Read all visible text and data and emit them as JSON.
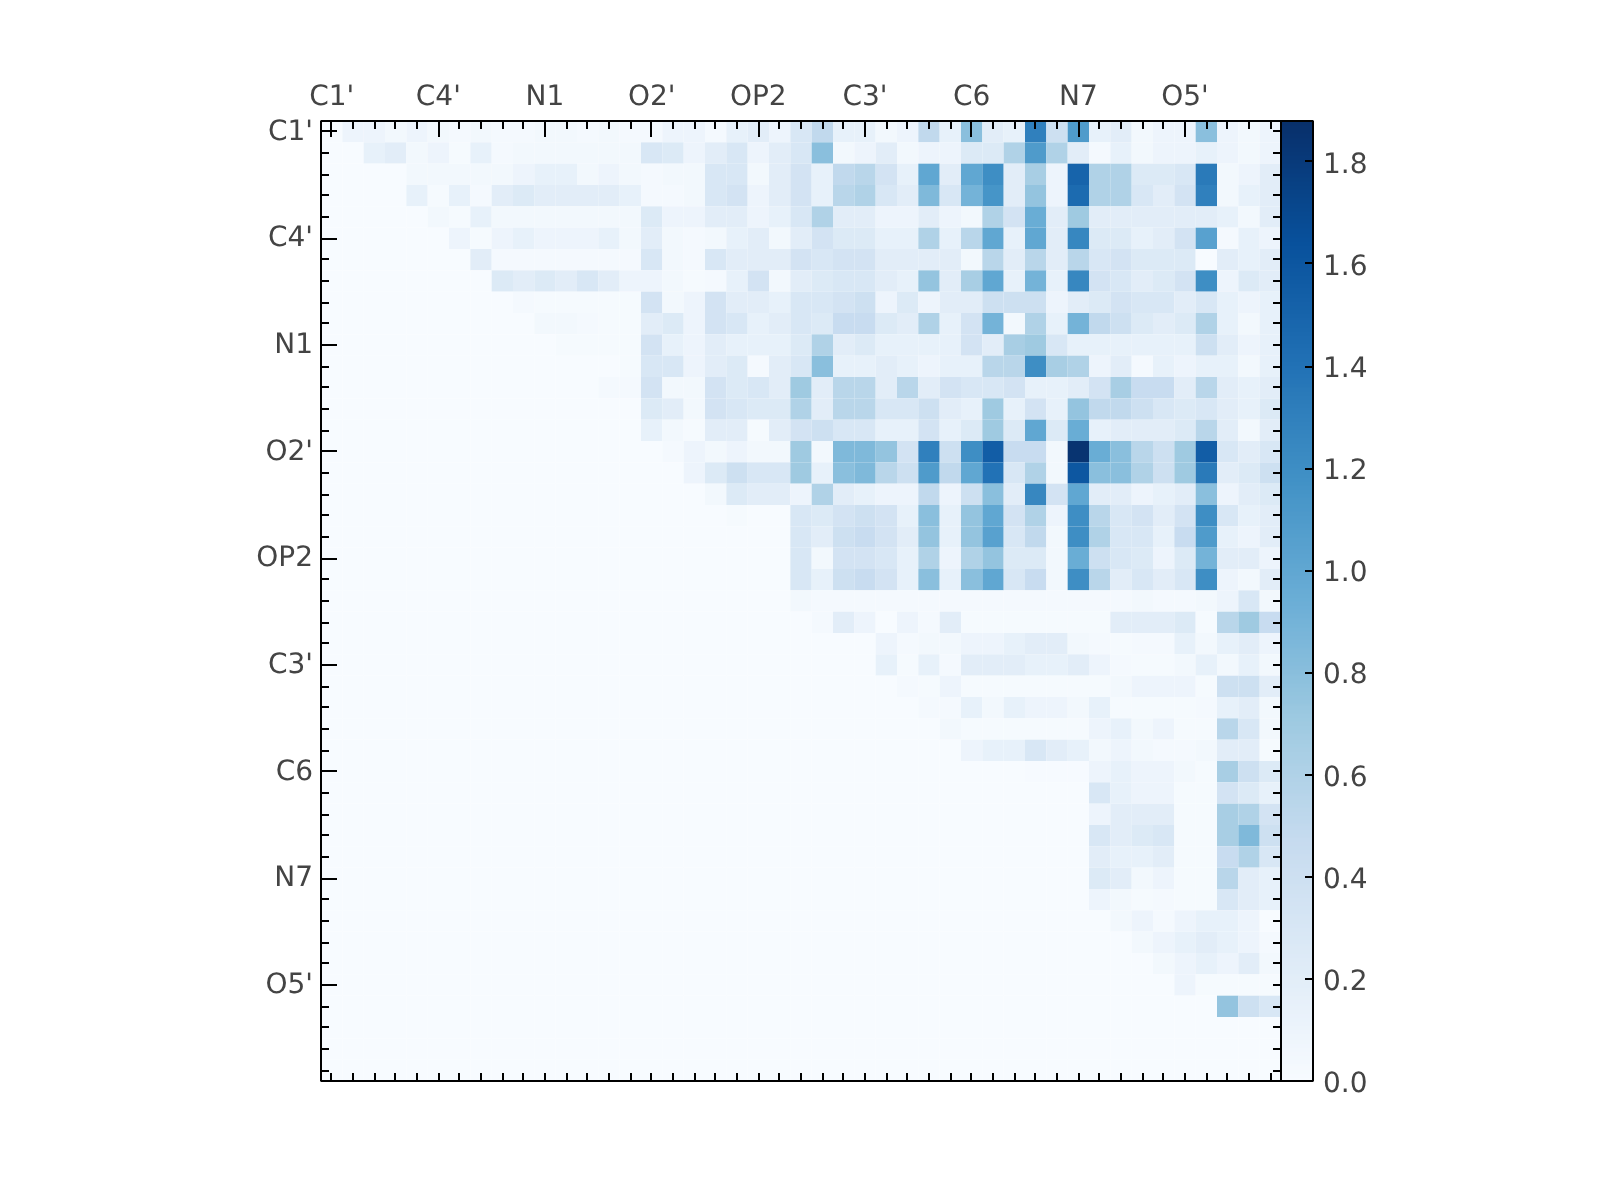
{
  "chart_data": {
    "type": "heatmap",
    "categories": [
      "C1'",
      null,
      null,
      null,
      null,
      "C4'",
      null,
      null,
      null,
      null,
      "N1",
      null,
      null,
      null,
      null,
      "O2'",
      null,
      null,
      null,
      null,
      "OP2",
      null,
      null,
      null,
      null,
      "C3'",
      null,
      null,
      null,
      null,
      "C6",
      null,
      null,
      null,
      null,
      "N7",
      null,
      null,
      null,
      null,
      "O5'",
      null,
      null,
      null,
      null
    ],
    "y_categories": [
      "C1'",
      null,
      null,
      null,
      null,
      "C4'",
      null,
      null,
      null,
      null,
      "N1",
      null,
      null,
      null,
      null,
      "O2'",
      null,
      null,
      null,
      null,
      "OP2",
      null,
      null,
      null,
      null,
      "C3'",
      null,
      null,
      null,
      null,
      "C6",
      null,
      null,
      null,
      null,
      "N7",
      null,
      null,
      null,
      null,
      "O5'",
      null,
      null,
      null,
      null
    ],
    "clim": [
      0,
      1.88
    ],
    "cticks": [
      {
        "value": 0,
        "label": "0.0"
      },
      0.2,
      0.4,
      0.6,
      0.8,
      {
        "value": 1,
        "label": "1.0"
      },
      1.2,
      1.4,
      1.6,
      1.8
    ],
    "cells": [
      [
        0,
        0.1,
        0.1,
        0.05,
        0.1,
        0.05,
        0.03,
        0.05,
        0.03,
        0.03,
        0.05,
        0.05,
        0.03,
        0.05,
        0.03,
        0.03,
        0.1,
        0.1,
        0.03,
        0.15,
        0.2,
        0.1,
        0.3,
        0.5,
        0.15,
        0.15,
        0.05,
        0.1,
        0.5,
        0.15,
        0.8,
        0.2,
        0.15,
        1.3,
        0.4,
        1.1,
        0.15,
        0.2,
        0.05,
        0.1,
        0.1,
        0.8,
        0.1,
        0.05,
        0.1
      ],
      [
        0,
        0,
        0.15,
        0.2,
        0.05,
        0.1,
        0.02,
        0.15,
        0.03,
        0.05,
        0.05,
        0.05,
        0.05,
        0.05,
        0.05,
        0.3,
        0.25,
        0.1,
        0.2,
        0.3,
        0.1,
        0.2,
        0.3,
        0.8,
        0.05,
        0.1,
        0.2,
        0.05,
        0.1,
        0.1,
        0.25,
        0.25,
        0.6,
        1.1,
        0.6,
        0.2,
        0.03,
        0.15,
        0.05,
        0.1,
        0.1,
        0.15,
        0.1,
        0.05,
        0.1
      ],
      [
        0,
        0,
        0,
        0,
        0.05,
        0.05,
        0.05,
        0.05,
        0.05,
        0.1,
        0.15,
        0.15,
        0.05,
        0.1,
        0.05,
        0.03,
        0.05,
        0.05,
        0.3,
        0.3,
        0.05,
        0.2,
        0.35,
        0.15,
        0.5,
        0.55,
        0.35,
        0.15,
        1.0,
        0.2,
        1.0,
        1.2,
        0.2,
        0.65,
        0.1,
        1.5,
        0.6,
        0.6,
        0.25,
        0.25,
        0.3,
        1.35,
        0.05,
        0.1,
        0.2
      ],
      [
        0,
        0,
        0,
        0,
        0.15,
        0.02,
        0.15,
        0.03,
        0.2,
        0.25,
        0.2,
        0.2,
        0.2,
        0.2,
        0.15,
        0.03,
        0.03,
        0.05,
        0.3,
        0.35,
        0.1,
        0.2,
        0.35,
        0.15,
        0.55,
        0.6,
        0.3,
        0.2,
        0.85,
        0.3,
        0.9,
        1.15,
        0.2,
        0.75,
        0.1,
        1.45,
        0.6,
        0.6,
        0.3,
        0.2,
        0.35,
        1.3,
        0.05,
        0.15,
        0.2
      ],
      [
        0,
        0,
        0,
        0,
        0,
        0.05,
        0.02,
        0.15,
        0.05,
        0.05,
        0.05,
        0.05,
        0.05,
        0.05,
        0.05,
        0.25,
        0.1,
        0.1,
        0.2,
        0.2,
        0.1,
        0.15,
        0.3,
        0.6,
        0.2,
        0.2,
        0.1,
        0.1,
        0.2,
        0.1,
        0.05,
        0.6,
        0.35,
        0.95,
        0.2,
        0.7,
        0.2,
        0.2,
        0.2,
        0.2,
        0.2,
        0.2,
        0.15,
        0.05,
        0.2
      ],
      [
        0,
        0,
        0,
        0,
        0,
        0,
        0.1,
        0.02,
        0.1,
        0.15,
        0.1,
        0.1,
        0.1,
        0.15,
        0.05,
        0.2,
        0.05,
        0.03,
        0.05,
        0.15,
        0.2,
        0.05,
        0.2,
        0.35,
        0.25,
        0.25,
        0.15,
        0.15,
        0.6,
        0.15,
        0.55,
        1.0,
        0.15,
        1.0,
        0.2,
        1.25,
        0.25,
        0.25,
        0.15,
        0.2,
        0.35,
        1.05,
        0.03,
        0.15,
        0.1
      ],
      [
        0,
        0,
        0,
        0,
        0,
        0,
        0,
        0.2,
        0.03,
        0.03,
        0.03,
        0.03,
        0.03,
        0.03,
        0.03,
        0.3,
        0.05,
        0.03,
        0.3,
        0.2,
        0.2,
        0.2,
        0.35,
        0.3,
        0.35,
        0.35,
        0.2,
        0.2,
        0.2,
        0.2,
        0.05,
        0.55,
        0.2,
        0.55,
        0.2,
        0.55,
        0.3,
        0.35,
        0.25,
        0.25,
        0.25,
        0,
        0.2,
        0.15,
        0.2
      ],
      [
        0,
        0,
        0,
        0,
        0,
        0,
        0,
        0,
        0.25,
        0.2,
        0.25,
        0.2,
        0.3,
        0.2,
        0.1,
        0.1,
        0.05,
        0.02,
        0.03,
        0.15,
        0.35,
        0.05,
        0.2,
        0.25,
        0.3,
        0.3,
        0.2,
        0.15,
        0.75,
        0.2,
        0.65,
        1.0,
        0.15,
        0.9,
        0.15,
        1.25,
        0.35,
        0.3,
        0.2,
        0.25,
        0.35,
        1.2,
        0.1,
        0.25,
        0.2
      ],
      [
        0,
        0,
        0,
        0,
        0,
        0,
        0,
        0,
        0,
        0.03,
        0.02,
        0.02,
        0.02,
        0.02,
        0.02,
        0.35,
        0.05,
        0.1,
        0.35,
        0.2,
        0.2,
        0.15,
        0.3,
        0.3,
        0.35,
        0.4,
        0.1,
        0.25,
        0.1,
        0.2,
        0.2,
        0.4,
        0.4,
        0.4,
        0.1,
        0.2,
        0.25,
        0.35,
        0.3,
        0.3,
        0.2,
        0.3,
        0.15,
        0.1,
        0.15
      ],
      [
        0,
        0,
        0,
        0,
        0,
        0,
        0,
        0,
        0,
        0,
        0.05,
        0.05,
        0.03,
        0.02,
        0.02,
        0.2,
        0.25,
        0.1,
        0.35,
        0.3,
        0.15,
        0.2,
        0.3,
        0.25,
        0.45,
        0.45,
        0.25,
        0.2,
        0.6,
        0.15,
        0.35,
        0.9,
        0.05,
        0.6,
        0.15,
        0.9,
        0.5,
        0.4,
        0.25,
        0.2,
        0.25,
        0.6,
        0.15,
        0.05,
        0.15
      ],
      [
        0,
        0,
        0,
        0,
        0,
        0,
        0,
        0,
        0,
        0,
        0,
        0.02,
        0.02,
        0.02,
        0.02,
        0.35,
        0.15,
        0.1,
        0.2,
        0.15,
        0.15,
        0.15,
        0.25,
        0.6,
        0.2,
        0.25,
        0.15,
        0.15,
        0.15,
        0.15,
        0.35,
        0.2,
        0.65,
        0.7,
        0.3,
        0.15,
        0.15,
        0.15,
        0.15,
        0.15,
        0.15,
        0.4,
        0.2,
        0.1,
        0.15
      ],
      [
        0,
        0,
        0,
        0,
        0,
        0,
        0,
        0,
        0,
        0,
        0,
        0,
        0,
        0,
        0.02,
        0.3,
        0.3,
        0.1,
        0.2,
        0.25,
        0.03,
        0.2,
        0.3,
        0.8,
        0.15,
        0.15,
        0.2,
        0.15,
        0.1,
        0.15,
        0.15,
        0.55,
        0.55,
        1.2,
        0.65,
        0.6,
        0.1,
        0.2,
        0.03,
        0.15,
        0.1,
        0.15,
        0.15,
        0.05,
        0.15
      ],
      [
        0,
        0,
        0,
        0,
        0,
        0,
        0,
        0,
        0,
        0,
        0,
        0,
        0,
        0.03,
        0.03,
        0.35,
        0.05,
        0.05,
        0.35,
        0.25,
        0.3,
        0.2,
        0.7,
        0.2,
        0.55,
        0.55,
        0.2,
        0.55,
        0.2,
        0.35,
        0.3,
        0.3,
        0.35,
        0.15,
        0.15,
        0.2,
        0.35,
        0.65,
        0.45,
        0.45,
        0.2,
        0.55,
        0.2,
        0.15,
        0.2
      ],
      [
        0,
        0,
        0,
        0,
        0,
        0,
        0,
        0,
        0,
        0,
        0,
        0,
        0,
        0,
        0,
        0.25,
        0.2,
        0.05,
        0.35,
        0.3,
        0.25,
        0.25,
        0.6,
        0.2,
        0.55,
        0.55,
        0.3,
        0.3,
        0.4,
        0.2,
        0.15,
        0.7,
        0.15,
        0.35,
        0.15,
        0.75,
        0.5,
        0.5,
        0.4,
        0.3,
        0.25,
        0.3,
        0.2,
        0.15,
        0.25
      ],
      [
        0,
        0,
        0,
        0,
        0,
        0,
        0,
        0,
        0,
        0,
        0,
        0,
        0,
        0,
        0,
        0.15,
        0.05,
        0.02,
        0.2,
        0.2,
        0.02,
        0.2,
        0.35,
        0.4,
        0.3,
        0.3,
        0.15,
        0.15,
        0.35,
        0.15,
        0.25,
        0.7,
        0.25,
        1.0,
        0.25,
        0.95,
        0.15,
        0.2,
        0.2,
        0.2,
        0.25,
        0.55,
        0.2,
        0.05,
        0.2
      ],
      [
        0,
        0,
        0,
        0,
        0,
        0,
        0,
        0,
        0,
        0,
        0,
        0,
        0,
        0,
        0,
        0,
        0.03,
        0.1,
        0.05,
        0.1,
        0.05,
        0.05,
        0.7,
        0.05,
        0.85,
        0.85,
        0.75,
        0.35,
        1.3,
        0.4,
        1.2,
        1.55,
        0.45,
        0.45,
        0.05,
        1.85,
        0.95,
        0.8,
        0.55,
        0.4,
        0.7,
        1.55,
        0.3,
        0.2,
        0.3
      ],
      [
        0,
        0,
        0,
        0,
        0,
        0,
        0,
        0,
        0,
        0,
        0,
        0,
        0,
        0,
        0,
        0,
        0,
        0.1,
        0.25,
        0.4,
        0.3,
        0.3,
        0.7,
        0.15,
        0.8,
        0.85,
        0.55,
        0.4,
        1.1,
        0.5,
        1.0,
        1.4,
        0.3,
        0.6,
        0.05,
        1.6,
        0.8,
        0.8,
        0.6,
        0.4,
        0.7,
        1.35,
        0.2,
        0.25,
        0.4
      ],
      [
        0,
        0,
        0,
        0,
        0,
        0,
        0,
        0,
        0,
        0,
        0,
        0,
        0,
        0,
        0,
        0,
        0,
        0,
        0.05,
        0.25,
        0.2,
        0.2,
        0.1,
        0.6,
        0.2,
        0.15,
        0.1,
        0.1,
        0.5,
        0.1,
        0.4,
        0.8,
        0.2,
        1.25,
        0.35,
        1.0,
        0.2,
        0.2,
        0.1,
        0.15,
        0.2,
        0.8,
        0.1,
        0.2,
        0.25
      ],
      [
        0,
        0,
        0,
        0,
        0,
        0,
        0,
        0,
        0,
        0,
        0,
        0,
        0,
        0,
        0,
        0,
        0,
        0,
        0,
        0.02,
        0,
        0,
        0.3,
        0.25,
        0.35,
        0.4,
        0.35,
        0.15,
        0.8,
        0.15,
        0.75,
        1.0,
        0.35,
        0.6,
        0.1,
        1.2,
        0.55,
        0.3,
        0.35,
        0.2,
        0.35,
        1.2,
        0.3,
        0.15,
        0.2
      ],
      [
        0,
        0,
        0,
        0,
        0,
        0,
        0,
        0,
        0,
        0,
        0,
        0,
        0,
        0,
        0,
        0,
        0,
        0,
        0,
        0,
        0,
        0,
        0.3,
        0.2,
        0.4,
        0.45,
        0.35,
        0.2,
        0.75,
        0.15,
        0.75,
        1.05,
        0.3,
        0.5,
        0.05,
        1.2,
        0.6,
        0.3,
        0.3,
        0.15,
        0.45,
        1.1,
        0.15,
        0.1,
        0.2
      ],
      [
        0,
        0,
        0,
        0,
        0,
        0,
        0,
        0,
        0,
        0,
        0,
        0,
        0,
        0,
        0,
        0,
        0,
        0,
        0,
        0,
        0,
        0,
        0.3,
        0.05,
        0.35,
        0.35,
        0.3,
        0.15,
        0.6,
        0.1,
        0.6,
        0.75,
        0.25,
        0.25,
        0.05,
        0.95,
        0.4,
        0.3,
        0.25,
        0.1,
        0.25,
        0.9,
        0.2,
        0.2,
        0.1
      ],
      [
        0,
        0,
        0,
        0,
        0,
        0,
        0,
        0,
        0,
        0,
        0,
        0,
        0,
        0,
        0,
        0,
        0,
        0,
        0,
        0,
        0,
        0,
        0.3,
        0.15,
        0.4,
        0.45,
        0.35,
        0.15,
        0.8,
        0.15,
        0.8,
        1.0,
        0.3,
        0.45,
        0.05,
        1.2,
        0.55,
        0.2,
        0.3,
        0.2,
        0.3,
        1.2,
        0.1,
        0.05,
        0.2
      ],
      [
        0,
        0,
        0,
        0,
        0,
        0,
        0,
        0,
        0,
        0,
        0,
        0,
        0,
        0,
        0,
        0,
        0,
        0,
        0,
        0,
        0,
        0,
        0.05,
        0.03,
        0.03,
        0.03,
        0.03,
        0.03,
        0.03,
        0.03,
        0.03,
        0.03,
        0.03,
        0.03,
        0.03,
        0.03,
        0.03,
        0.03,
        0.05,
        0.03,
        0.03,
        0.05,
        0.1,
        0.3,
        0.05
      ],
      [
        0,
        0,
        0,
        0,
        0,
        0,
        0,
        0,
        0,
        0,
        0,
        0,
        0,
        0,
        0,
        0,
        0,
        0,
        0,
        0,
        0,
        0,
        0,
        0.03,
        0.2,
        0.1,
        0,
        0.1,
        0.03,
        0.2,
        0.02,
        0.02,
        0.02,
        0.02,
        0.02,
        0.02,
        0.02,
        0.2,
        0.2,
        0.2,
        0.25,
        0.02,
        0.55,
        0.7,
        0.45
      ],
      [
        0,
        0,
        0,
        0,
        0,
        0,
        0,
        0,
        0,
        0,
        0,
        0,
        0,
        0,
        0,
        0,
        0,
        0,
        0,
        0,
        0,
        0,
        0,
        0,
        0,
        0,
        0.1,
        0.03,
        0.05,
        0.05,
        0.1,
        0.1,
        0.15,
        0.2,
        0.2,
        0.05,
        0.03,
        0.02,
        0.03,
        0.03,
        0.15,
        0.05,
        0.15,
        0.2,
        0.1
      ],
      [
        0,
        0,
        0,
        0,
        0,
        0,
        0,
        0,
        0,
        0,
        0,
        0,
        0,
        0,
        0,
        0,
        0,
        0,
        0,
        0,
        0,
        0,
        0,
        0,
        0,
        0,
        0.15,
        0.02,
        0.15,
        0.03,
        0.2,
        0.2,
        0.2,
        0.15,
        0.15,
        0.2,
        0.1,
        0.03,
        0.02,
        0.02,
        0.05,
        0.15,
        0.05,
        0.15,
        0.05
      ],
      [
        0,
        0,
        0,
        0,
        0,
        0,
        0,
        0,
        0,
        0,
        0,
        0,
        0,
        0,
        0,
        0,
        0,
        0,
        0,
        0,
        0,
        0,
        0,
        0,
        0,
        0,
        0,
        0.03,
        0.02,
        0.1,
        0.02,
        0.02,
        0.02,
        0.02,
        0.02,
        0.02,
        0.02,
        0.05,
        0.1,
        0.1,
        0.1,
        0.02,
        0.4,
        0.4,
        0.2
      ],
      [
        0,
        0,
        0,
        0,
        0,
        0,
        0,
        0,
        0,
        0,
        0,
        0,
        0,
        0,
        0,
        0,
        0,
        0,
        0,
        0,
        0,
        0,
        0,
        0,
        0,
        0,
        0,
        0,
        0.03,
        0.03,
        0.15,
        0.05,
        0.15,
        0.1,
        0.1,
        0.05,
        0.15,
        0.02,
        0.02,
        0.02,
        0.02,
        0.03,
        0.15,
        0.2,
        0.05
      ],
      [
        0,
        0,
        0,
        0,
        0,
        0,
        0,
        0,
        0,
        0,
        0,
        0,
        0,
        0,
        0,
        0,
        0,
        0,
        0,
        0,
        0,
        0,
        0,
        0,
        0,
        0,
        0,
        0,
        0,
        0.05,
        0.02,
        0.02,
        0.02,
        0.02,
        0.02,
        0.02,
        0.1,
        0.15,
        0.05,
        0.1,
        0.02,
        0.02,
        0.55,
        0.3,
        0.05
      ],
      [
        0,
        0,
        0,
        0,
        0,
        0,
        0,
        0,
        0,
        0,
        0,
        0,
        0,
        0,
        0,
        0,
        0,
        0,
        0,
        0,
        0,
        0,
        0,
        0,
        0,
        0,
        0,
        0,
        0,
        0,
        0.1,
        0.15,
        0.15,
        0.3,
        0.2,
        0.15,
        0.05,
        0.1,
        0.05,
        0.03,
        0.03,
        0.05,
        0.2,
        0.2,
        0.02
      ],
      [
        0,
        0,
        0,
        0,
        0,
        0,
        0,
        0,
        0,
        0,
        0,
        0,
        0,
        0,
        0,
        0,
        0,
        0,
        0,
        0,
        0,
        0,
        0,
        0,
        0,
        0,
        0,
        0,
        0,
        0,
        0,
        0,
        0,
        0.01,
        0.01,
        0.01,
        0.1,
        0.15,
        0.1,
        0.1,
        0.05,
        0.02,
        0.65,
        0.4,
        0.25
      ],
      [
        0,
        0,
        0,
        0,
        0,
        0,
        0,
        0,
        0,
        0,
        0,
        0,
        0,
        0,
        0,
        0,
        0,
        0,
        0,
        0,
        0,
        0,
        0,
        0,
        0,
        0,
        0,
        0,
        0,
        0,
        0,
        0,
        0,
        0,
        0,
        0,
        0.3,
        0.15,
        0.1,
        0.1,
        0.02,
        0.02,
        0.35,
        0.25,
        0.15
      ],
      [
        0,
        0,
        0,
        0,
        0,
        0,
        0,
        0,
        0,
        0,
        0,
        0,
        0,
        0,
        0,
        0,
        0,
        0,
        0,
        0,
        0,
        0,
        0,
        0,
        0,
        0,
        0,
        0,
        0,
        0,
        0,
        0,
        0,
        0,
        0,
        0,
        0.1,
        0.2,
        0.2,
        0.2,
        0.02,
        0.02,
        0.65,
        0.6,
        0.35
      ],
      [
        0,
        0,
        0,
        0,
        0,
        0,
        0,
        0,
        0,
        0,
        0,
        0,
        0,
        0,
        0,
        0,
        0,
        0,
        0,
        0,
        0,
        0,
        0,
        0,
        0,
        0,
        0,
        0,
        0,
        0,
        0,
        0,
        0,
        0,
        0,
        0,
        0.3,
        0.2,
        0.25,
        0.3,
        0.02,
        0.02,
        0.65,
        0.85,
        0.4
      ],
      [
        0,
        0,
        0,
        0,
        0,
        0,
        0,
        0,
        0,
        0,
        0,
        0,
        0,
        0,
        0,
        0,
        0,
        0,
        0,
        0,
        0,
        0,
        0,
        0,
        0,
        0,
        0,
        0,
        0,
        0,
        0,
        0,
        0,
        0,
        0,
        0,
        0.2,
        0.15,
        0.15,
        0.2,
        0.02,
        0.02,
        0.45,
        0.6,
        0.3
      ],
      [
        0,
        0,
        0,
        0,
        0,
        0,
        0,
        0,
        0,
        0,
        0,
        0,
        0,
        0,
        0,
        0,
        0,
        0,
        0,
        0,
        0,
        0,
        0,
        0,
        0,
        0,
        0,
        0,
        0,
        0,
        0,
        0,
        0,
        0,
        0,
        0,
        0.25,
        0.2,
        0.05,
        0.1,
        0.02,
        0.02,
        0.55,
        0.2,
        0.15
      ],
      [
        0,
        0,
        0,
        0,
        0,
        0,
        0,
        0,
        0,
        0,
        0,
        0,
        0,
        0,
        0,
        0,
        0,
        0,
        0,
        0,
        0,
        0,
        0,
        0,
        0,
        0,
        0,
        0,
        0,
        0,
        0,
        0,
        0,
        0,
        0,
        0,
        0.1,
        0.05,
        0.02,
        0.03,
        0.02,
        0.02,
        0.3,
        0.2,
        0.15
      ],
      [
        0,
        0,
        0,
        0,
        0,
        0,
        0,
        0,
        0,
        0,
        0,
        0,
        0,
        0,
        0,
        0,
        0,
        0,
        0,
        0,
        0,
        0,
        0,
        0,
        0,
        0,
        0,
        0,
        0,
        0,
        0,
        0,
        0,
        0,
        0,
        0,
        0,
        0.05,
        0.1,
        0.03,
        0.1,
        0.15,
        0.15,
        0.1,
        0
      ],
      [
        0,
        0,
        0,
        0,
        0,
        0,
        0,
        0,
        0,
        0,
        0,
        0,
        0,
        0,
        0,
        0,
        0,
        0,
        0,
        0,
        0,
        0,
        0,
        0,
        0,
        0,
        0,
        0,
        0,
        0,
        0,
        0,
        0,
        0,
        0,
        0,
        0,
        0,
        0.05,
        0.1,
        0.15,
        0.2,
        0.15,
        0.1,
        0.03
      ],
      [
        0,
        0,
        0,
        0,
        0,
        0,
        0,
        0,
        0,
        0,
        0,
        0,
        0,
        0,
        0,
        0,
        0,
        0,
        0,
        0,
        0,
        0,
        0,
        0,
        0,
        0,
        0,
        0,
        0,
        0,
        0,
        0,
        0,
        0,
        0,
        0,
        0,
        0,
        0,
        0.05,
        0.1,
        0.15,
        0.1,
        0.2,
        0.05
      ],
      [
        0,
        0,
        0,
        0,
        0,
        0,
        0,
        0,
        0,
        0,
        0,
        0,
        0,
        0,
        0,
        0,
        0,
        0,
        0,
        0,
        0,
        0,
        0,
        0,
        0,
        0,
        0,
        0,
        0,
        0,
        0,
        0,
        0,
        0,
        0,
        0,
        0,
        0,
        0,
        0,
        0.1,
        0.02,
        0.02,
        0.02,
        0.02
      ],
      [
        0,
        0,
        0,
        0,
        0,
        0,
        0,
        0,
        0,
        0,
        0,
        0,
        0,
        0,
        0,
        0,
        0,
        0,
        0,
        0,
        0,
        0,
        0,
        0,
        0,
        0,
        0,
        0,
        0,
        0,
        0,
        0,
        0,
        0,
        0,
        0,
        0,
        0,
        0,
        0,
        0,
        0,
        0.75,
        0.4,
        0.3
      ],
      [
        0,
        0,
        0,
        0,
        0,
        0,
        0,
        0,
        0,
        0,
        0,
        0,
        0,
        0,
        0,
        0,
        0,
        0,
        0,
        0,
        0,
        0,
        0,
        0,
        0,
        0,
        0,
        0,
        0,
        0,
        0,
        0,
        0,
        0,
        0,
        0,
        0,
        0,
        0,
        0,
        0,
        0,
        0,
        0,
        0
      ],
      [
        0,
        0,
        0,
        0,
        0,
        0,
        0,
        0,
        0,
        0,
        0,
        0,
        0,
        0,
        0,
        0,
        0,
        0,
        0,
        0,
        0,
        0,
        0,
        0,
        0,
        0,
        0,
        0,
        0,
        0,
        0,
        0,
        0,
        0,
        0,
        0,
        0,
        0,
        0,
        0,
        0,
        0,
        0,
        0,
        0
      ],
      [
        0,
        0,
        0,
        0,
        0,
        0,
        0,
        0,
        0,
        0,
        0,
        0,
        0,
        0,
        0,
        0,
        0,
        0,
        0,
        0,
        0,
        0,
        0,
        0,
        0,
        0,
        0,
        0,
        0,
        0,
        0,
        0,
        0,
        0,
        0,
        0,
        0,
        0,
        0,
        0,
        0,
        0,
        0,
        0,
        0
      ]
    ]
  }
}
